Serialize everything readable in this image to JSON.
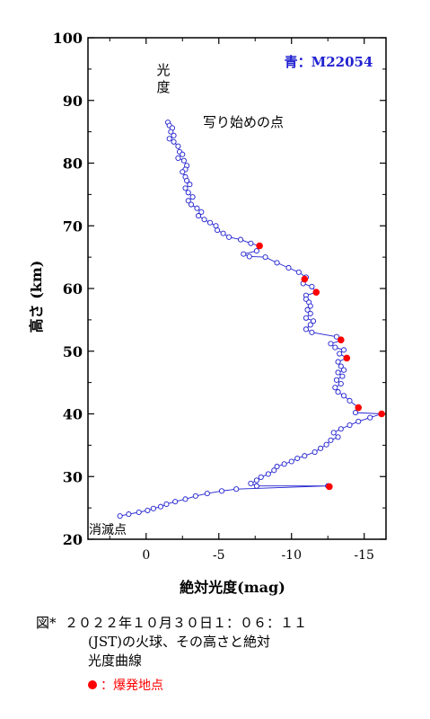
{
  "chart_data": {
    "type": "scatter",
    "xlabel": "絶対光度(mag)",
    "ylabel": "高さ (km)",
    "xlim": [
      4,
      -16.5
    ],
    "ylim": [
      20,
      100
    ],
    "xticks": [
      0,
      -5,
      -10,
      -15
    ],
    "xtick_labels": [
      "0",
      "-5",
      "-10",
      "-15"
    ],
    "yticks": [
      20,
      30,
      40,
      50,
      60,
      70,
      80,
      90,
      100
    ],
    "grid": false,
    "legend_position": "top-right",
    "series": [
      {
        "name": "青：M22054",
        "color": "#2020d0",
        "marker": "open-circle",
        "points": [
          [
            -1.5,
            86.5
          ],
          [
            -1.6,
            86.0
          ],
          [
            -1.8,
            85.6
          ],
          [
            -1.7,
            85.0
          ],
          [
            -1.9,
            84.4
          ],
          [
            -1.6,
            83.9
          ],
          [
            -1.9,
            83.4
          ],
          [
            -2.2,
            82.7
          ],
          [
            -2.3,
            81.8
          ],
          [
            -2.5,
            81.4
          ],
          [
            -2.2,
            80.8
          ],
          [
            -2.6,
            80.4
          ],
          [
            -2.8,
            79.6
          ],
          [
            -2.7,
            79.0
          ],
          [
            -2.5,
            78.6
          ],
          [
            -2.7,
            77.8
          ],
          [
            -2.8,
            77.2
          ],
          [
            -3.0,
            76.6
          ],
          [
            -2.7,
            76.0
          ],
          [
            -2.9,
            75.3
          ],
          [
            -3.2,
            74.6
          ],
          [
            -2.9,
            74.0
          ],
          [
            -3.1,
            73.4
          ],
          [
            -3.5,
            72.8
          ],
          [
            -3.8,
            72.2
          ],
          [
            -3.6,
            71.6
          ],
          [
            -4.0,
            71.0
          ],
          [
            -4.4,
            70.5
          ],
          [
            -4.8,
            70.0
          ],
          [
            -4.9,
            69.3
          ],
          [
            -5.3,
            68.8
          ],
          [
            -5.7,
            68.2
          ],
          [
            -6.5,
            67.8
          ],
          [
            -7.2,
            67.2
          ],
          [
            -7.8,
            66.8
          ],
          [
            -7.6,
            66.0
          ],
          [
            -6.7,
            65.5
          ],
          [
            -7.1,
            65.1
          ],
          [
            -8.2,
            65.0
          ],
          [
            -9.0,
            64.1
          ],
          [
            -9.8,
            63.3
          ],
          [
            -10.5,
            62.6
          ],
          [
            -11.0,
            61.8
          ],
          [
            -10.8,
            60.8
          ],
          [
            -11.4,
            60.3
          ],
          [
            -11.7,
            59.4
          ],
          [
            -11.0,
            58.9
          ],
          [
            -11.0,
            58.3
          ],
          [
            -11.2,
            57.8
          ],
          [
            -11.3,
            57.2
          ],
          [
            -11.1,
            56.6
          ],
          [
            -11.3,
            56.0
          ],
          [
            -11.0,
            55.3
          ],
          [
            -11.5,
            54.8
          ],
          [
            -11.3,
            54.2
          ],
          [
            -11.0,
            53.5
          ],
          [
            -11.4,
            53.0
          ],
          [
            -13.1,
            52.3
          ],
          [
            -13.4,
            51.7
          ],
          [
            -12.7,
            51.2
          ],
          [
            -13.0,
            50.6
          ],
          [
            -13.6,
            50.2
          ],
          [
            -13.3,
            49.6
          ],
          [
            -13.8,
            48.9
          ],
          [
            -13.2,
            48.3
          ],
          [
            -13.4,
            47.6
          ],
          [
            -13.6,
            47.0
          ],
          [
            -13.2,
            46.6
          ],
          [
            -13.5,
            46.0
          ],
          [
            -13.1,
            45.4
          ],
          [
            -13.4,
            44.8
          ],
          [
            -13.0,
            44.2
          ],
          [
            -13.2,
            43.5
          ],
          [
            -13.6,
            42.9
          ],
          [
            -14.0,
            42.1
          ],
          [
            -14.6,
            41.0
          ],
          [
            -14.4,
            40.2
          ],
          [
            -16.2,
            40.0
          ],
          [
            -15.4,
            39.4
          ],
          [
            -14.6,
            38.8
          ],
          [
            -14.0,
            38.2
          ],
          [
            -13.4,
            37.6
          ],
          [
            -12.9,
            37.0
          ],
          [
            -13.2,
            36.3
          ],
          [
            -12.7,
            35.8
          ],
          [
            -12.4,
            35.1
          ],
          [
            -12.0,
            34.5
          ],
          [
            -11.6,
            33.9
          ],
          [
            -10.9,
            33.3
          ],
          [
            -10.4,
            32.9
          ],
          [
            -10.0,
            32.4
          ],
          [
            -9.5,
            32.0
          ],
          [
            -9.0,
            31.6
          ],
          [
            -8.8,
            31.0
          ],
          [
            -8.4,
            30.4
          ],
          [
            -7.9,
            29.9
          ],
          [
            -7.6,
            29.4
          ],
          [
            -7.2,
            28.9
          ],
          [
            -7.6,
            28.5
          ],
          [
            -12.5,
            28.5
          ],
          [
            -6.2,
            28.0
          ],
          [
            -5.2,
            27.7
          ],
          [
            -4.2,
            27.3
          ],
          [
            -3.4,
            26.9
          ],
          [
            -2.7,
            26.4
          ],
          [
            -2.0,
            26.0
          ],
          [
            -1.4,
            25.6
          ],
          [
            -1.0,
            25.2
          ],
          [
            -0.5,
            24.9
          ],
          [
            -0.1,
            24.6
          ],
          [
            0.5,
            24.3
          ],
          [
            1.2,
            24.0
          ],
          [
            1.8,
            23.7
          ]
        ]
      },
      {
        "name": "爆発地点",
        "color": "#ff0000",
        "marker": "filled-circle",
        "points": [
          [
            -7.8,
            66.8
          ],
          [
            -10.9,
            61.5
          ],
          [
            -11.7,
            59.4
          ],
          [
            -13.4,
            51.8
          ],
          [
            -13.8,
            48.9
          ],
          [
            -14.6,
            41.0
          ],
          [
            -16.2,
            40.0
          ],
          [
            -12.6,
            28.4
          ]
        ]
      }
    ],
    "annotations": {
      "legend_series": "青：M22054",
      "luminosity_label": "光\n度",
      "start_label": "写り始めの点",
      "end_label": "消滅点"
    }
  },
  "caption": {
    "line1": "図*  ２０２２年１０月３０日１：０６：１１",
    "line2": "(JST)の火球、その高さと絶対",
    "line3": "光度曲線"
  },
  "legend_note": {
    "text": "：爆発地点",
    "color": "#ff0000"
  }
}
